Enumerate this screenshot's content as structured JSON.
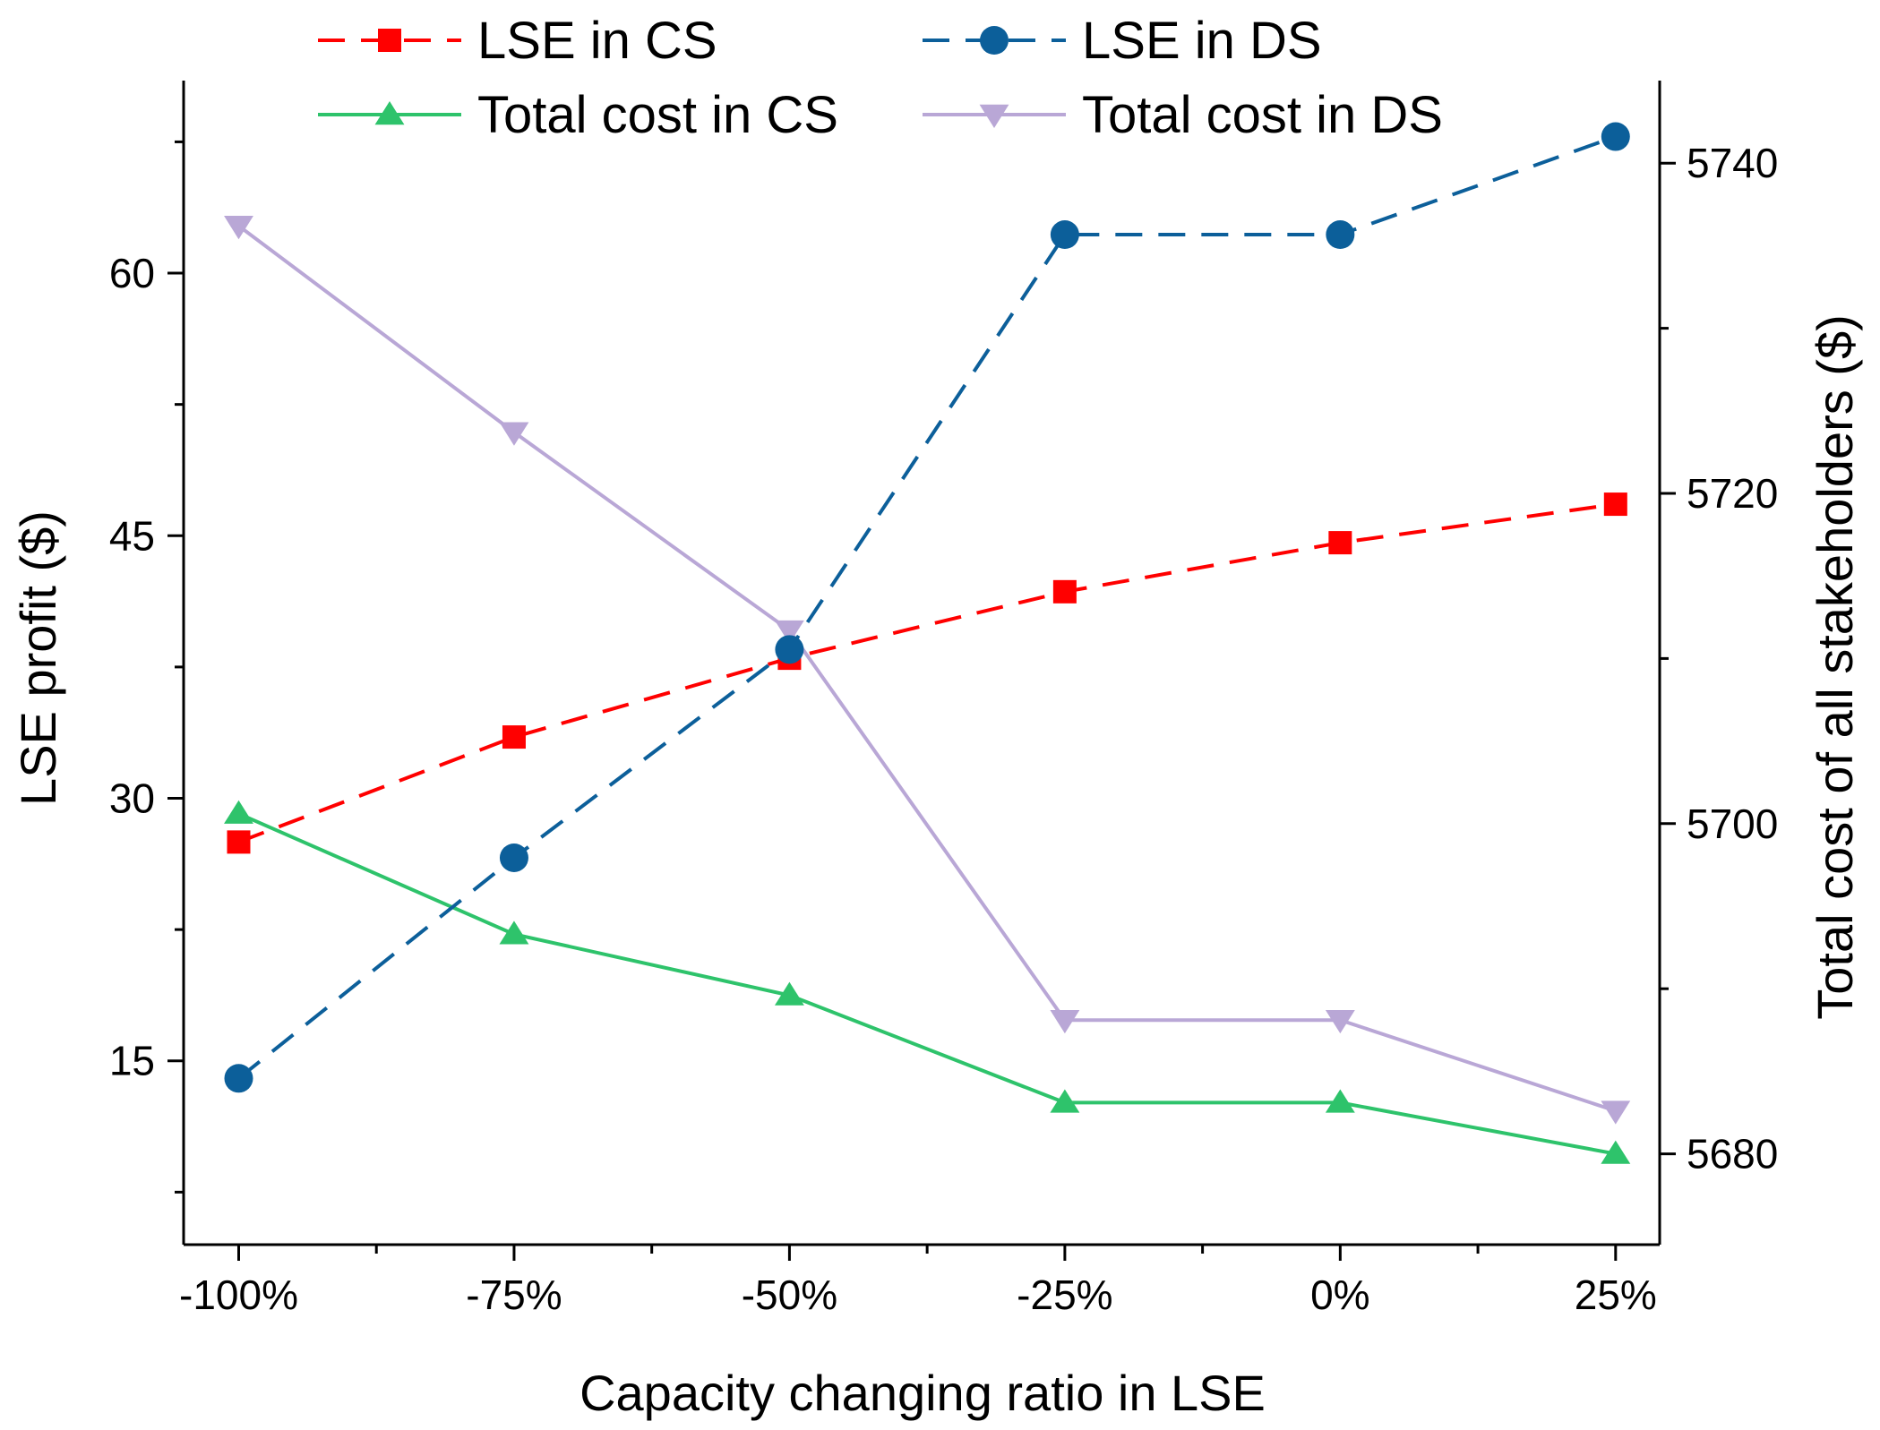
{
  "chart_data": {
    "type": "line",
    "title": "",
    "xlabel": "Capacity changing ratio in LSE",
    "ylabel_left": "LSE profit ($)",
    "ylabel_right": "Total cost of all stakeholders ($)",
    "categories": [
      "-100%",
      "-75%",
      "-50%",
      "-25%",
      "0%",
      "25%"
    ],
    "x_values": [
      -100,
      -75,
      -50,
      -25,
      0,
      25
    ],
    "xlim": [
      -105,
      29
    ],
    "ylim_left": [
      4.5,
      71
    ],
    "ylim_right": [
      5674.5,
      5745
    ],
    "yticks_left": [
      15,
      30,
      45,
      60
    ],
    "yticks_left_labels": [
      "15",
      "30",
      "45",
      "60"
    ],
    "yticks_right": [
      5680,
      5700,
      5720,
      5740
    ],
    "yticks_right_labels": [
      "5680",
      "5700",
      "5720",
      "5740"
    ],
    "series": [
      {
        "name": "LSE in CS",
        "axis": "left",
        "color": "#ff0000",
        "marker": "square",
        "dash": true,
        "values": [
          27.5,
          33.5,
          38.0,
          41.8,
          44.6,
          46.8
        ]
      },
      {
        "name": "LSE in DS",
        "axis": "left",
        "color": "#0c5f9a",
        "marker": "circle",
        "dash": true,
        "values": [
          14.0,
          26.6,
          38.5,
          62.2,
          62.2,
          67.8
        ]
      },
      {
        "name": "Total cost in CS",
        "axis": "right",
        "color": "#2ec36b",
        "marker": "triangle-up",
        "dash": false,
        "values": [
          5700.6,
          5693.3,
          5689.6,
          5683.1,
          5683.1,
          5680.0
        ]
      },
      {
        "name": "Total cost in DS",
        "axis": "right",
        "color": "#b9a7d6",
        "marker": "triangle-down",
        "dash": false,
        "values": [
          5736.2,
          5723.7,
          5711.7,
          5688.1,
          5688.1,
          5682.6
        ]
      }
    ],
    "legend_position": "top"
  }
}
